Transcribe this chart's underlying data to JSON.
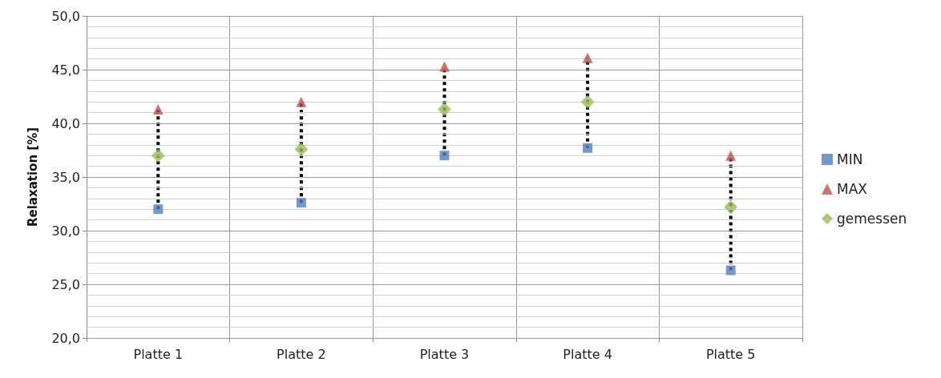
{
  "chart_data": {
    "type": "scatter",
    "ylabel": "Relaxation [%]",
    "categories": [
      "Platte 1",
      "Platte 2",
      "Platte 3",
      "Platte 4",
      "Platte 5"
    ],
    "series": [
      {
        "name": "MIN",
        "color": "#4f81bd",
        "marker": "square",
        "values": [
          32.0,
          32.6,
          37.0,
          37.7,
          26.3
        ]
      },
      {
        "name": "MAX",
        "color": "#c0504d",
        "marker": "triangle",
        "values": [
          41.3,
          42.0,
          45.3,
          46.1,
          37.0
        ]
      },
      {
        "name": "gemessen",
        "color": "#9bbb59",
        "marker": "diamond",
        "values": [
          37.0,
          37.6,
          41.3,
          42.0,
          32.2
        ]
      }
    ],
    "ylim": [
      20,
      50
    ],
    "yticks": [
      {
        "value": 20,
        "label": "20,0"
      },
      {
        "value": 25,
        "label": "25,0"
      },
      {
        "value": 30,
        "label": "30,0"
      },
      {
        "value": 35,
        "label": "35,0"
      },
      {
        "value": 40,
        "label": "40,0"
      },
      {
        "value": 45,
        "label": "45,0"
      },
      {
        "value": 50,
        "label": "50,0"
      }
    ],
    "grid": true,
    "legend": "right",
    "line_style": "dotted"
  }
}
